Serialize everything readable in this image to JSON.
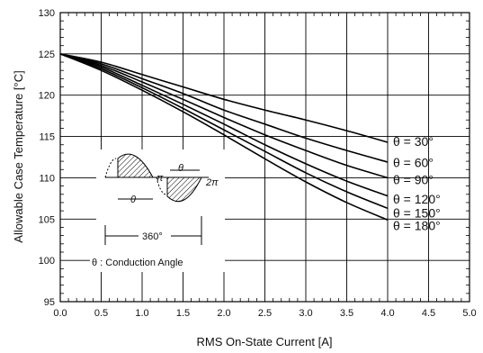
{
  "chart_data": {
    "type": "line",
    "xlabel": "RMS On-State Current [A]",
    "ylabel": "Allowable Case Temperature [°C]",
    "xlim": [
      0,
      5
    ],
    "ylim": [
      95,
      130
    ],
    "xticks": [
      "0.0",
      "0.5",
      "1.0",
      "1.5",
      "2.0",
      "2.5",
      "3.0",
      "3.5",
      "4.0",
      "4.5",
      "5.0"
    ],
    "yticks": [
      "95",
      "100",
      "105",
      "110",
      "115",
      "120",
      "125",
      "130"
    ],
    "grid": true,
    "series": [
      {
        "name": "θ = 30°",
        "color": "#000000",
        "x": [
          0,
          0.5,
          1.0,
          1.5,
          2.0,
          2.5,
          3.0,
          3.5,
          4.0
        ],
        "y": [
          125,
          124.0,
          122.5,
          121.0,
          119.5,
          118.2,
          117.0,
          115.7,
          114.3
        ]
      },
      {
        "name": "θ = 60°",
        "color": "#000000",
        "x": [
          0,
          0.5,
          1.0,
          1.5,
          2.0,
          2.5,
          3.0,
          3.5,
          4.0
        ],
        "y": [
          125,
          123.8,
          122.0,
          120.2,
          118.2,
          116.5,
          114.8,
          113.3,
          111.9
        ]
      },
      {
        "name": "θ = 90°",
        "color": "#000000",
        "x": [
          0,
          0.5,
          1.0,
          1.5,
          2.0,
          2.5,
          3.0,
          3.5,
          4.0
        ],
        "y": [
          125,
          123.6,
          121.6,
          119.5,
          117.3,
          115.2,
          113.3,
          111.5,
          110.0
        ]
      },
      {
        "name": "θ = 120°",
        "color": "#000000",
        "x": [
          0,
          0.5,
          1.0,
          1.5,
          2.0,
          2.5,
          3.0,
          3.5,
          4.0
        ],
        "y": [
          125,
          123.4,
          121.2,
          118.9,
          116.5,
          114.0,
          111.7,
          109.6,
          107.8
        ]
      },
      {
        "name": "θ = 150°",
        "color": "#000000",
        "x": [
          0,
          0.5,
          1.0,
          1.5,
          2.0,
          2.5,
          3.0,
          3.5,
          4.0
        ],
        "y": [
          125,
          123.2,
          120.9,
          118.4,
          115.8,
          113.2,
          110.6,
          108.3,
          106.3
        ]
      },
      {
        "name": "θ = 180°",
        "color": "#000000",
        "x": [
          0,
          0.5,
          1.0,
          1.5,
          2.0,
          2.5,
          3.0,
          3.5,
          4.0
        ],
        "y": [
          125,
          123.0,
          120.6,
          118.0,
          115.2,
          112.3,
          109.5,
          107.0,
          104.9
        ]
      }
    ],
    "inset": {
      "pi_label": "π",
      "two_pi_label": "2π",
      "theta_label": "θ",
      "period_label": "360°",
      "caption": "θ : Conduction Angle"
    }
  }
}
